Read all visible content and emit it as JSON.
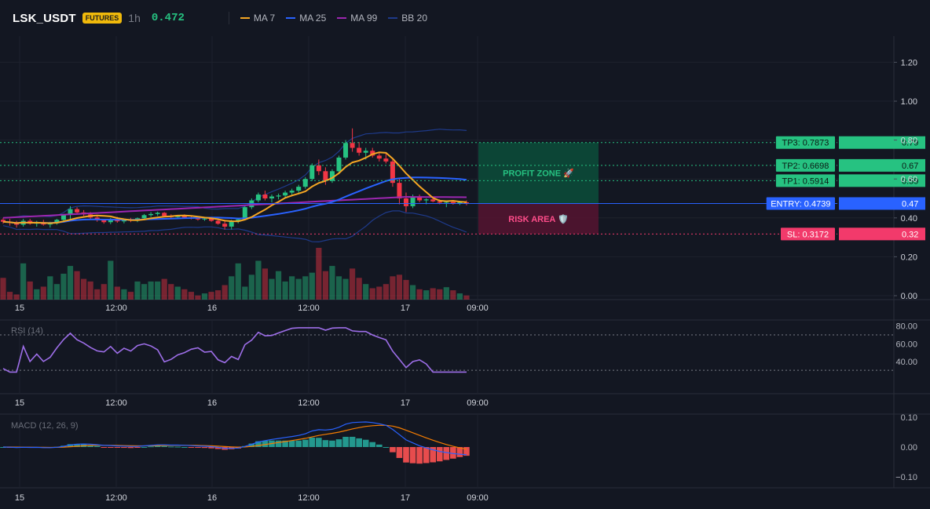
{
  "header": {
    "symbol": "LSK_USDT",
    "badge": "FUTURES",
    "timeframe": "1h",
    "last_price": "0.472",
    "legend": [
      {
        "name": "MA 7",
        "color": "#f5a623"
      },
      {
        "name": "MA 25",
        "color": "#2962ff"
      },
      {
        "name": "MA 99",
        "color": "#9c27b0"
      },
      {
        "name": "BB 20",
        "color": "#1e3a8a"
      }
    ]
  },
  "colors": {
    "up": "#26c281",
    "down": "#f23645",
    "bg": "#131722",
    "grid": "#1e222d",
    "ma7": "#f5a623",
    "ma25": "#2962ff",
    "ma99": "#9c27b0",
    "bb": "#1e3a8a",
    "rsi": "#9d6ee8",
    "macd": "#2962ff",
    "signal": "#f57c00"
  },
  "price_axis": {
    "ticks": [
      "1.20",
      "1.00",
      "0.80",
      "0.60",
      "0.40",
      "0.20",
      "0.00"
    ],
    "values": [
      1.2,
      1.0,
      0.8,
      0.6,
      0.4,
      0.2,
      0.0
    ]
  },
  "time_axis": [
    "15",
    "12:00",
    "16",
    "12:00",
    "17",
    "09:00"
  ],
  "levels": {
    "tp3": {
      "label": "TP3: 0.7873",
      "axis": "0.79",
      "value": 0.7873
    },
    "tp2": {
      "label": "TP2: 0.6698",
      "axis": "0.67",
      "value": 0.6698
    },
    "tp1": {
      "label": "TP1: 0.5914",
      "axis": "0.59",
      "value": 0.5914
    },
    "entry": {
      "label": "ENTRY: 0.4739",
      "axis": "0.47",
      "value": 0.4739
    },
    "sl": {
      "label": "SL: 0.3172",
      "axis": "0.32",
      "value": 0.3172
    }
  },
  "zones": {
    "profit": "PROFIT ZONE 🚀",
    "risk": "RISK AREA 🛡️"
  },
  "rsi": {
    "title": "RSI (14)",
    "ticks": [
      "80.00",
      "60.00",
      "40.00"
    ],
    "tick_values": [
      80,
      60,
      40
    ],
    "bounds": [
      70,
      30
    ]
  },
  "macd": {
    "title": "MACD (12, 26, 9)",
    "ticks": [
      "0.10",
      "0.00",
      "−0.10"
    ],
    "tick_values": [
      0.1,
      0.0,
      -0.1
    ]
  },
  "chart_data": {
    "type": "candlestick",
    "candles": [
      [
        0.39,
        0.4,
        0.37,
        0.38
      ],
      [
        0.38,
        0.395,
        0.36,
        0.375
      ],
      [
        0.375,
        0.385,
        0.35,
        0.365
      ],
      [
        0.365,
        0.395,
        0.355,
        0.385
      ],
      [
        0.385,
        0.395,
        0.365,
        0.37
      ],
      [
        0.37,
        0.385,
        0.355,
        0.378
      ],
      [
        0.378,
        0.39,
        0.36,
        0.366
      ],
      [
        0.366,
        0.38,
        0.35,
        0.372
      ],
      [
        0.372,
        0.395,
        0.365,
        0.39
      ],
      [
        0.39,
        0.42,
        0.38,
        0.415
      ],
      [
        0.415,
        0.46,
        0.395,
        0.445
      ],
      [
        0.445,
        0.455,
        0.42,
        0.428
      ],
      [
        0.428,
        0.44,
        0.41,
        0.418
      ],
      [
        0.418,
        0.43,
        0.395,
        0.402
      ],
      [
        0.402,
        0.41,
        0.38,
        0.388
      ],
      [
        0.388,
        0.395,
        0.37,
        0.378
      ],
      [
        0.378,
        0.4,
        0.368,
        0.395
      ],
      [
        0.395,
        0.405,
        0.375,
        0.382
      ],
      [
        0.382,
        0.395,
        0.372,
        0.39
      ],
      [
        0.39,
        0.4,
        0.378,
        0.385
      ],
      [
        0.385,
        0.402,
        0.378,
        0.398
      ],
      [
        0.398,
        0.42,
        0.392,
        0.414
      ],
      [
        0.414,
        0.43,
        0.405,
        0.42
      ],
      [
        0.42,
        0.432,
        0.41,
        0.426
      ],
      [
        0.426,
        0.43,
        0.405,
        0.41
      ],
      [
        0.41,
        0.418,
        0.398,
        0.404
      ],
      [
        0.404,
        0.414,
        0.396,
        0.41
      ],
      [
        0.41,
        0.418,
        0.398,
        0.402
      ],
      [
        0.402,
        0.41,
        0.392,
        0.398
      ],
      [
        0.398,
        0.404,
        0.386,
        0.392
      ],
      [
        0.392,
        0.4,
        0.385,
        0.396
      ],
      [
        0.396,
        0.402,
        0.38,
        0.385
      ],
      [
        0.385,
        0.392,
        0.365,
        0.37
      ],
      [
        0.37,
        0.39,
        0.34,
        0.355
      ],
      [
        0.355,
        0.39,
        0.34,
        0.385
      ],
      [
        0.385,
        0.4,
        0.372,
        0.392
      ],
      [
        0.392,
        0.46,
        0.388,
        0.455
      ],
      [
        0.455,
        0.5,
        0.445,
        0.49
      ],
      [
        0.49,
        0.53,
        0.48,
        0.52
      ],
      [
        0.52,
        0.54,
        0.49,
        0.5
      ],
      [
        0.5,
        0.52,
        0.48,
        0.51
      ],
      [
        0.51,
        0.525,
        0.495,
        0.515
      ],
      [
        0.515,
        0.54,
        0.505,
        0.53
      ],
      [
        0.53,
        0.55,
        0.515,
        0.54
      ],
      [
        0.54,
        0.57,
        0.525,
        0.56
      ],
      [
        0.56,
        0.61,
        0.55,
        0.6
      ],
      [
        0.6,
        0.68,
        0.59,
        0.67
      ],
      [
        0.67,
        0.7,
        0.62,
        0.64
      ],
      [
        0.64,
        0.66,
        0.57,
        0.59
      ],
      [
        0.59,
        0.65,
        0.58,
        0.64
      ],
      [
        0.64,
        0.72,
        0.63,
        0.71
      ],
      [
        0.71,
        0.8,
        0.7,
        0.785
      ],
      [
        0.785,
        0.86,
        0.74,
        0.76
      ],
      [
        0.76,
        0.79,
        0.72,
        0.735
      ],
      [
        0.735,
        0.76,
        0.7,
        0.745
      ],
      [
        0.745,
        0.76,
        0.71,
        0.72
      ],
      [
        0.72,
        0.74,
        0.69,
        0.705
      ],
      [
        0.705,
        0.73,
        0.68,
        0.69
      ],
      [
        0.69,
        0.7,
        0.56,
        0.58
      ],
      [
        0.58,
        0.6,
        0.47,
        0.5
      ],
      [
        0.5,
        0.53,
        0.43,
        0.46
      ],
      [
        0.46,
        0.52,
        0.45,
        0.51
      ],
      [
        0.51,
        0.52,
        0.48,
        0.49
      ],
      [
        0.49,
        0.5,
        0.47,
        0.495
      ],
      [
        0.495,
        0.505,
        0.48,
        0.485
      ],
      [
        0.485,
        0.495,
        0.47,
        0.478
      ],
      [
        0.478,
        0.49,
        0.455,
        0.482
      ],
      [
        0.482,
        0.492,
        0.468,
        0.475
      ],
      [
        0.475,
        0.488,
        0.466,
        0.48
      ],
      [
        0.48,
        0.49,
        0.465,
        0.472
      ]
    ],
    "volume_ratio": [
      0.42,
      0.15,
      0.1,
      0.7,
      0.35,
      0.2,
      0.25,
      0.45,
      0.3,
      0.5,
      0.65,
      0.55,
      0.4,
      0.35,
      0.2,
      0.3,
      0.75,
      0.25,
      0.2,
      0.15,
      0.35,
      0.3,
      0.35,
      0.35,
      0.4,
      0.3,
      0.25,
      0.2,
      0.15,
      0.08,
      0.12,
      0.15,
      0.18,
      0.28,
      0.45,
      0.7,
      0.25,
      0.48,
      0.75,
      0.6,
      0.4,
      0.55,
      0.35,
      0.45,
      0.4,
      0.45,
      0.52,
      1.0,
      0.55,
      0.65,
      0.45,
      0.4,
      0.6,
      0.42,
      0.3,
      0.22,
      0.25,
      0.3,
      0.45,
      0.48,
      0.38,
      0.28,
      0.2,
      0.18,
      0.22,
      0.2,
      0.24,
      0.18,
      0.12,
      0.08
    ]
  }
}
